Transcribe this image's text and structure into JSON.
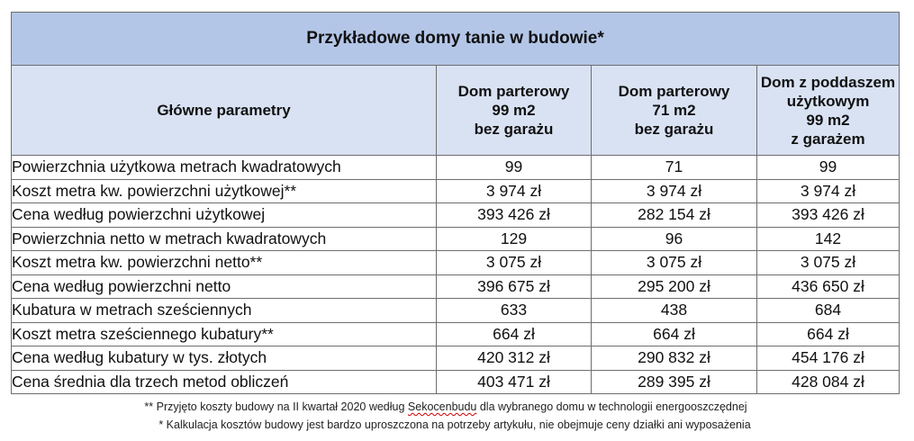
{
  "table": {
    "title": "Przykładowe domy tanie w budowie*",
    "header_param": "Główne parametry",
    "columns": [
      [
        "Dom parterowy",
        "99 m2",
        "bez garażu"
      ],
      [
        "Dom parterowy",
        "71 m2",
        "bez garażu"
      ],
      [
        "Dom z poddaszem",
        "użytkowym",
        "99 m2",
        "z garażem"
      ]
    ],
    "rows": [
      {
        "label": "Powierzchnia użytkowa metrach kwadratowych",
        "values": [
          "99",
          "71",
          "99"
        ]
      },
      {
        "label": "Koszt metra kw. powierzchni użytkowej**",
        "values": [
          "3 974 zł",
          "3 974 zł",
          "3 974 zł"
        ]
      },
      {
        "label": "Cena według powierzchni użytkowej",
        "values": [
          "393 426 zł",
          "282 154 zł",
          "393 426 zł"
        ]
      },
      {
        "label": "Powierzchnia netto w metrach kwadratowych",
        "values": [
          "129",
          "96",
          "142"
        ]
      },
      {
        "label": "Koszt metra kw. powierzchni netto**",
        "values": [
          "3 075 zł",
          "3 075 zł",
          "3 075 zł"
        ]
      },
      {
        "label": "Cena według powierzchni netto",
        "values": [
          "396 675 zł",
          "295 200 zł",
          "436 650 zł"
        ]
      },
      {
        "label": "Kubatura w metrach sześciennych",
        "values": [
          "633",
          "438",
          "684"
        ]
      },
      {
        "label": "Koszt metra sześciennego kubatury**",
        "values": [
          "664 zł",
          "664 zł",
          "664 zł"
        ]
      },
      {
        "label": "Cena według kubatury w tys. złotych",
        "values": [
          "420 312 zł",
          "290 832 zł",
          "454 176 zł"
        ]
      },
      {
        "label": "Cena średnia dla trzech metod obliczeń",
        "values": [
          "403 471 zł",
          "289 395 zł",
          "428 084 zł"
        ]
      }
    ]
  },
  "footnotes": {
    "fn1_before": "**  Przyjęto koszty budowy na II kwartał 2020 według ",
    "fn1_source": "Sekocenbudu",
    "fn1_after": " dla wybranego domu w technologii energooszczędnej",
    "fn2": "* Kalkulacja kosztów budowy jest bardzo uproszczona na potrzeby artykułu, nie obejmuje ceny działki ani wyposażenia"
  }
}
